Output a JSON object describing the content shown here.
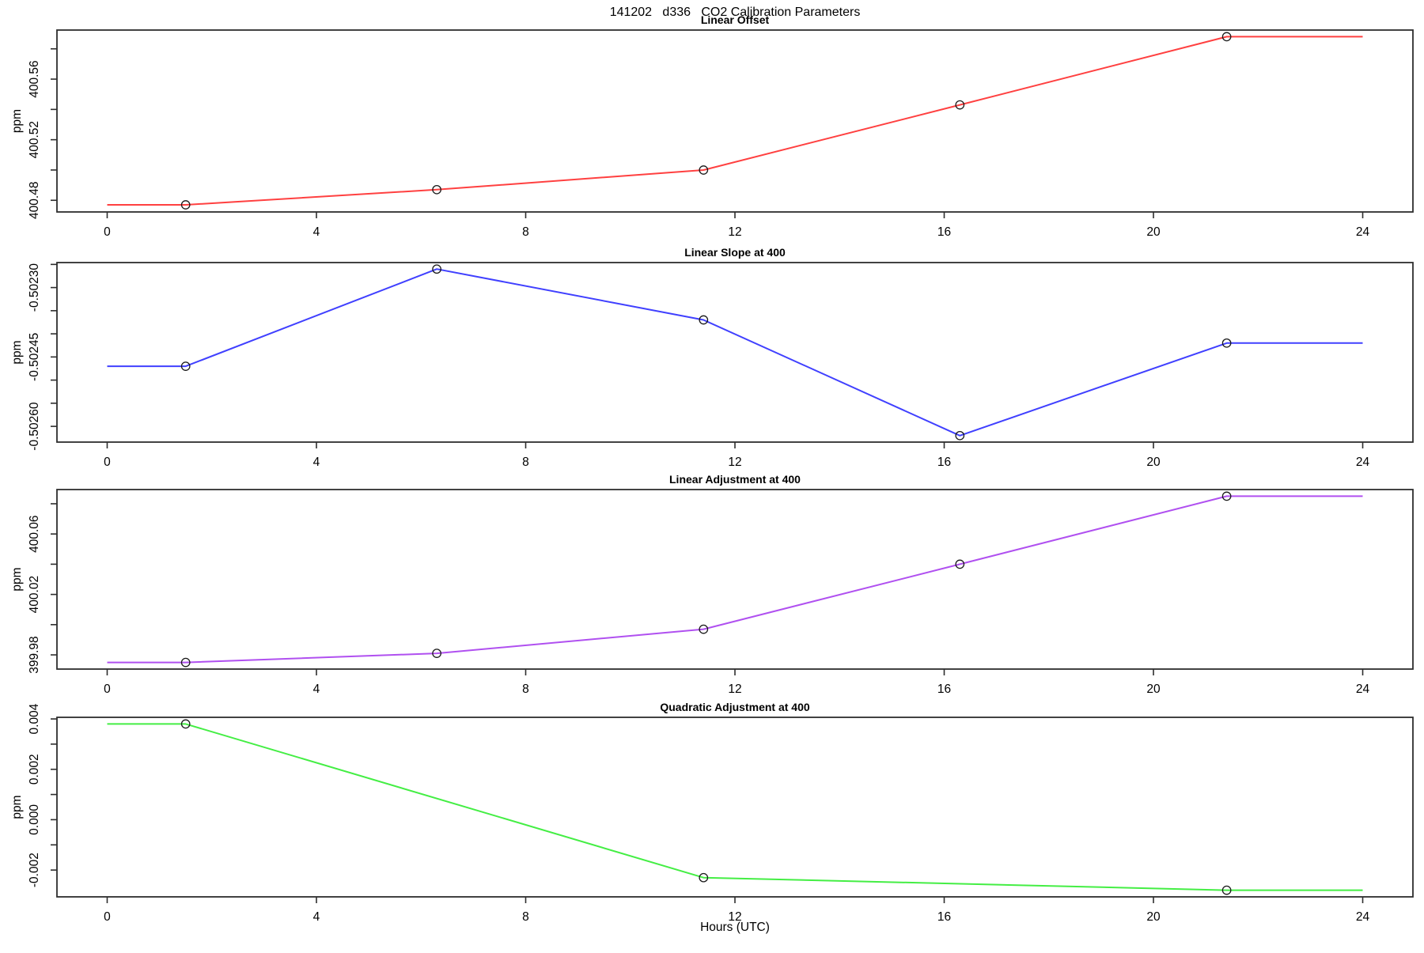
{
  "main_title": "141202   d336   CO2 Calibration Parameters",
  "xlabel": "Hours (UTC)",
  "ylabel": "ppm",
  "axis_color": "#2e2e2e",
  "x_ticks": [
    0,
    4,
    8,
    12,
    16,
    20,
    24
  ],
  "xlim": [
    0,
    24
  ],
  "chart_data": [
    {
      "type": "line",
      "title": "Linear Offset",
      "ylabel": "ppm",
      "color": "#ff4040",
      "marker": "open-circle",
      "x": [
        1.5,
        6.3,
        11.4,
        16.3,
        21.4
      ],
      "y": [
        400.477,
        400.487,
        400.5,
        400.543,
        400.588
      ],
      "line_extends": {
        "x_start": 0,
        "x_end": 24
      },
      "ylim": [
        400.4723,
        400.5924
      ],
      "yticks": [
        {
          "v": 400.48,
          "label": "400.48"
        },
        {
          "v": 400.5,
          "label": ""
        },
        {
          "v": 400.52,
          "label": "400.52"
        },
        {
          "v": 400.54,
          "label": ""
        },
        {
          "v": 400.56,
          "label": "400.56"
        },
        {
          "v": 400.58,
          "label": ""
        }
      ]
    },
    {
      "type": "line",
      "title": "Linear Slope at 400",
      "ylabel": "ppm",
      "color": "#4040ff",
      "marker": "open-circle",
      "x": [
        1.5,
        6.3,
        11.4,
        16.3,
        21.4
      ],
      "y": [
        -0.50247,
        -0.50226,
        -0.50237,
        -0.50262,
        -0.50242
      ],
      "line_extends": {
        "x_start": 0,
        "x_end": 24
      },
      "ylim": [
        -0.502634,
        -0.502246
      ],
      "yticks": [
        {
          "v": -0.5026,
          "label": "-0.50260"
        },
        {
          "v": -0.50255,
          "label": ""
        },
        {
          "v": -0.5025,
          "label": ""
        },
        {
          "v": -0.50245,
          "label": "-0.50245"
        },
        {
          "v": -0.5024,
          "label": ""
        },
        {
          "v": -0.50235,
          "label": ""
        },
        {
          "v": -0.5023,
          "label": "-0.50230"
        },
        {
          "v": -0.50225,
          "label": ""
        }
      ]
    },
    {
      "type": "line",
      "title": "Linear Adjustment at 400",
      "ylabel": "ppm",
      "color": "#b050f0",
      "marker": "open-circle",
      "x": [
        1.5,
        6.3,
        11.4,
        16.3,
        21.4
      ],
      "y": [
        399.975,
        399.981,
        399.997,
        400.04,
        400.085
      ],
      "line_extends": {
        "x_start": 0,
        "x_end": 24
      },
      "ylim": [
        399.9706,
        400.0894
      ],
      "yticks": [
        {
          "v": 399.98,
          "label": "399.98"
        },
        {
          "v": 400.0,
          "label": ""
        },
        {
          "v": 400.02,
          "label": "400.02"
        },
        {
          "v": 400.04,
          "label": ""
        },
        {
          "v": 400.06,
          "label": "400.06"
        },
        {
          "v": 400.08,
          "label": ""
        }
      ]
    },
    {
      "type": "line",
      "title": "Quadratic Adjustment at 400",
      "ylabel": "ppm",
      "color": "#44ee44",
      "marker": "open-circle",
      "x": [
        1.5,
        11.4,
        21.4
      ],
      "y": [
        0.0038,
        -0.0023,
        -0.0028
      ],
      "line_extends": {
        "x_start": 0,
        "x_end": 24
      },
      "ylim": [
        -0.003064,
        0.004064
      ],
      "yticks": [
        {
          "v": -0.002,
          "label": "-0.002"
        },
        {
          "v": -0.001,
          "label": ""
        },
        {
          "v": 0.0,
          "label": "0.000"
        },
        {
          "v": 0.001,
          "label": ""
        },
        {
          "v": 0.002,
          "label": "0.002"
        },
        {
          "v": 0.003,
          "label": ""
        },
        {
          "v": 0.004,
          "label": "0.004"
        }
      ]
    }
  ]
}
